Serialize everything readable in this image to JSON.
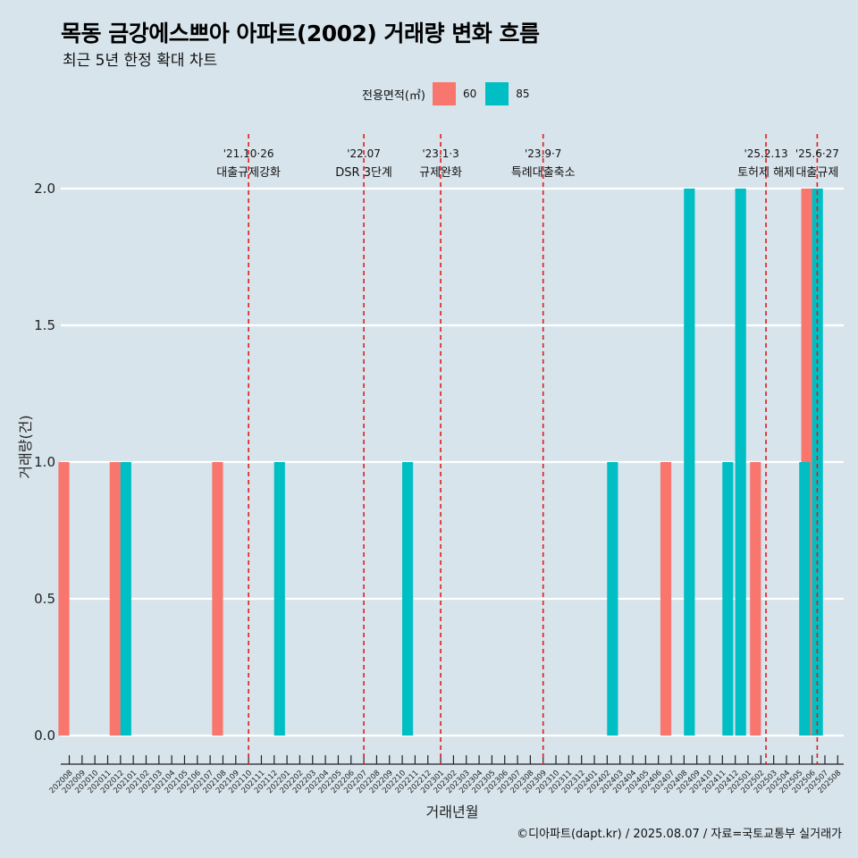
{
  "title": "목동 금강에스쁘아 아파트(2002) 거래량 변화 흐름",
  "subtitle": "최근 5년 한정 확대 차트",
  "caption": "©디아파트(dapt.kr) / 2025.08.07 / 자료=국토교통부 실거래가",
  "legend": {
    "title": "전용면적(㎡)",
    "items": [
      {
        "label": "60",
        "color": "#F8766D"
      },
      {
        "label": "85",
        "color": "#00BFC4"
      }
    ]
  },
  "chart_data": {
    "type": "bar",
    "xlabel": "거래년월",
    "ylabel": "거래량(건)",
    "ylim": [
      0,
      2
    ],
    "yticks": [
      "0.0",
      "0.5",
      "1.0",
      "1.5",
      "2.0"
    ],
    "grid": true,
    "legend_position": "top",
    "categories": [
      "202008",
      "202009",
      "202010",
      "202011",
      "202012",
      "202101",
      "202102",
      "202103",
      "202104",
      "202105",
      "202106",
      "202107",
      "202108",
      "202109",
      "202110",
      "202111",
      "202112",
      "202201",
      "202202",
      "202203",
      "202204",
      "202205",
      "202206",
      "202207",
      "202208",
      "202209",
      "202210",
      "202211",
      "202212",
      "202301",
      "202302",
      "202303",
      "202304",
      "202305",
      "202306",
      "202307",
      "202308",
      "202309",
      "202310",
      "202311",
      "202312",
      "202401",
      "202402",
      "202403",
      "202404",
      "202405",
      "202406",
      "202407",
      "202408",
      "202409",
      "202410",
      "202411",
      "202412",
      "202501",
      "202502",
      "202503",
      "202504",
      "202505",
      "202506",
      "202507",
      "202508"
    ],
    "series": [
      {
        "name": "60",
        "color": "#F8766D",
        "values": [
          1,
          0,
          0,
          0,
          1,
          0,
          0,
          0,
          0,
          0,
          0,
          0,
          1,
          0,
          0,
          0,
          0,
          0,
          0,
          0,
          0,
          0,
          0,
          0,
          0,
          0,
          0,
          0,
          0,
          0,
          0,
          0,
          0,
          0,
          0,
          0,
          0,
          0,
          0,
          0,
          0,
          0,
          0,
          0,
          0,
          0,
          0,
          1,
          0,
          0,
          0,
          0,
          0,
          0,
          1,
          0,
          0,
          0,
          2,
          0,
          0
        ]
      },
      {
        "name": "85",
        "color": "#00BFC4",
        "values": [
          0,
          0,
          0,
          0,
          1,
          0,
          0,
          0,
          0,
          0,
          0,
          0,
          0,
          0,
          0,
          0,
          1,
          0,
          0,
          0,
          0,
          0,
          0,
          0,
          0,
          0,
          1,
          0,
          0,
          0,
          0,
          0,
          0,
          0,
          0,
          0,
          0,
          0,
          0,
          0,
          0,
          0,
          1,
          0,
          0,
          0,
          0,
          0,
          2,
          0,
          0,
          1,
          2,
          0,
          0,
          0,
          0,
          1,
          2,
          0,
          0
        ]
      }
    ],
    "annotations": [
      {
        "x": 14.0,
        "date": "'21.10·26",
        "label": "대출규제강화",
        "color": "#e41a1c"
      },
      {
        "x": 23.0,
        "date": "'22.07",
        "label": "DSR 3단계",
        "color": "#e41a1c"
      },
      {
        "x": 29.0,
        "date": "'23.1·3",
        "label": "규제완화",
        "color": "#e41a1c"
      },
      {
        "x": 37.0,
        "date": "'23.9·7",
        "label": "특례대출축소",
        "color": "#e41a1c"
      },
      {
        "x": 54.4,
        "date": "'25.2.13",
        "label": "토허제 해제",
        "color": "#e41a1c"
      },
      {
        "x": 58.4,
        "date": "'25.6·27",
        "label": "대출규제",
        "color": "#e41a1c"
      }
    ]
  }
}
